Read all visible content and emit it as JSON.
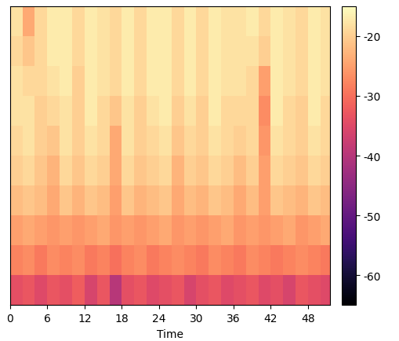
{
  "chart_data": {
    "type": "heatmap",
    "x_label": "Time",
    "color": "magma",
    "tick_labels": "x",
    "x_edges": [
      0,
      2,
      4,
      6,
      8,
      10,
      12,
      14,
      16,
      18,
      20,
      22,
      24,
      26,
      28,
      30,
      32,
      34,
      36,
      38,
      40,
      42,
      44,
      46,
      48,
      50,
      52
    ],
    "xlim": [
      0,
      51.5
    ],
    "xticks": [
      0,
      6,
      12,
      18,
      24,
      30,
      36,
      42,
      48
    ],
    "cells": [
      [
        -34,
        -33,
        -35,
        -33,
        -34,
        -32,
        -36,
        -33,
        -40,
        -34,
        -33,
        -35,
        -34,
        -33,
        -36,
        -34,
        -33,
        -35,
        -34,
        -33,
        -35,
        -34,
        -36,
        -33,
        -34,
        -35
      ],
      [
        -28,
        -27,
        -29,
        -27,
        -28,
        -27,
        -29,
        -28,
        -30,
        -28,
        -27,
        -29,
        -28,
        -27,
        -28,
        -29,
        -27,
        -28,
        -29,
        -27,
        -28,
        -29,
        -28,
        -27,
        -28,
        -29
      ],
      [
        -25,
        -24,
        -25,
        -26,
        -25,
        -26,
        -25,
        -24,
        -26,
        -25,
        -26,
        -25,
        -24,
        -26,
        -25,
        -26,
        -25,
        -24,
        -26,
        -25,
        -26,
        -25,
        -24,
        -26,
        -25,
        -24
      ],
      [
        -22,
        -21,
        -22,
        -24,
        -21,
        -23,
        -21,
        -22,
        -25,
        -21,
        -23,
        -22,
        -21,
        -24,
        -22,
        -23,
        -21,
        -22,
        -24,
        -22,
        -25,
        -21,
        -22,
        -23,
        -21,
        -22
      ],
      [
        -20,
        -19,
        -21,
        -23,
        -19,
        -21,
        -19,
        -20,
        -24,
        -19,
        -21,
        -20,
        -19,
        -23,
        -20,
        -21,
        -19,
        -20,
        -22,
        -20,
        -25,
        -19,
        -20,
        -21,
        -19,
        -20
      ],
      [
        -19,
        -18,
        -20,
        -21,
        -18,
        -20,
        -18,
        -19,
        -24,
        -18,
        -20,
        -19,
        -18,
        -21,
        -19,
        -20,
        -18,
        -19,
        -20,
        -19,
        -26,
        -18,
        -19,
        -20,
        -18,
        -19
      ],
      [
        -18,
        -18,
        -20,
        -19,
        -18,
        -20,
        -17,
        -19,
        -21,
        -18,
        -20,
        -18,
        -17,
        -20,
        -18,
        -20,
        -17,
        -19,
        -19,
        -19,
        -27,
        -17,
        -19,
        -20,
        -17,
        -19
      ],
      [
        -18,
        -19,
        -19,
        -18,
        -17,
        -20,
        -17,
        -18,
        -19,
        -17,
        -19,
        -17,
        -17,
        -19,
        -17,
        -19,
        -17,
        -18,
        -18,
        -19,
        -25,
        -17,
        -18,
        -19,
        -17,
        -18
      ],
      [
        -19,
        -21,
        -19,
        -17,
        -17,
        -19,
        -17,
        -18,
        -19,
        -17,
        -19,
        -17,
        -17,
        -19,
        -17,
        -19,
        -17,
        -18,
        -18,
        -18,
        -20,
        -17,
        -18,
        -19,
        -17,
        -18
      ],
      [
        -18,
        -24,
        -19,
        -17,
        -17,
        -19,
        -17,
        -18,
        -19,
        -17,
        -19,
        -17,
        -17,
        -19,
        -17,
        -19,
        -17,
        -18,
        -18,
        -17,
        -19,
        -17,
        -18,
        -19,
        -17,
        -18
      ]
    ],
    "colorbar": {
      "range": [
        -65,
        -15
      ],
      "ticks": [
        -60,
        -50,
        -40,
        -30,
        -20
      ]
    }
  }
}
